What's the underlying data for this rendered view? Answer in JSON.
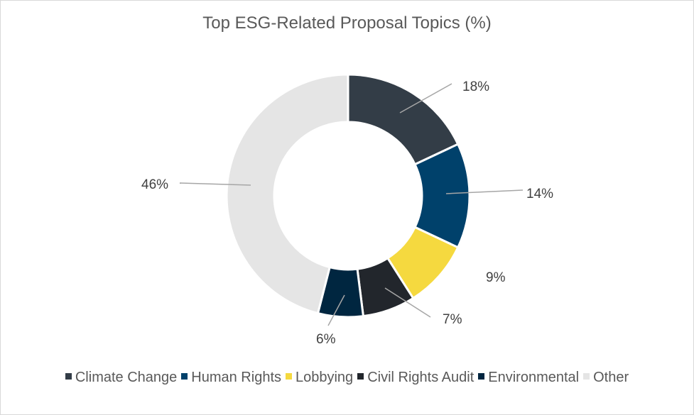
{
  "chart_data": {
    "type": "pie",
    "variant": "donut",
    "title": "Top ESG-Related Proposal Topics (%)",
    "categories": [
      "Climate Change",
      "Human Rights",
      "Lobbying",
      "Civil Rights Audit",
      "Environmental",
      "Other"
    ],
    "values": [
      18,
      14,
      9,
      7,
      6,
      46
    ],
    "labels": [
      "18%",
      "14%",
      "9%",
      "7%",
      "6%",
      "46%"
    ],
    "colors": [
      "#333d47",
      "#00416b",
      "#f5d93f",
      "#22262c",
      "#002640",
      "#e5e5e5"
    ],
    "legend_position": "bottom"
  }
}
